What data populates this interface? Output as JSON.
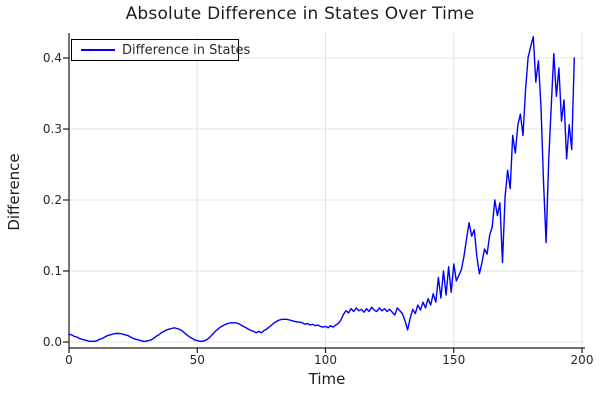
{
  "title": "Absolute Difference in States Over Time",
  "legend": {
    "label": "Difference in States"
  },
  "axes": {
    "x": {
      "label": "Time",
      "tick_labels": [
        "0",
        "50",
        "100",
        "150",
        "200"
      ],
      "tick_values": [
        0,
        50,
        100,
        150,
        200
      ]
    },
    "y": {
      "label": "Difference",
      "tick_labels": [
        "0.0",
        "0.1",
        "0.2",
        "0.3",
        "0.4"
      ],
      "tick_values": [
        0,
        0.1,
        0.2,
        0.3,
        0.4
      ]
    }
  },
  "colors": {
    "line": "#0000ff",
    "grid": "#e5e5e5",
    "axis": "#1a1a1a",
    "background": "#ffffff"
  },
  "chart_data": {
    "type": "line",
    "title": "Absolute Difference in States Over Time",
    "xlabel": "Time",
    "ylabel": "Difference",
    "xlim": [
      0,
      200
    ],
    "ylim": [
      0,
      0.44
    ],
    "grid": true,
    "legend_position": "top-left",
    "series": [
      {
        "name": "Difference in States",
        "color": "#0000ff",
        "x_start": 0,
        "x_step": 1,
        "x": [
          0,
          1,
          2,
          3,
          4,
          5,
          6,
          7,
          8,
          9,
          10,
          11,
          12,
          13,
          14,
          15,
          16,
          17,
          18,
          19,
          20,
          21,
          22,
          23,
          24,
          25,
          26,
          27,
          28,
          29,
          30,
          31,
          32,
          33,
          34,
          35,
          36,
          37,
          38,
          39,
          40,
          41,
          42,
          43,
          44,
          45,
          46,
          47,
          48,
          49,
          50,
          51,
          52,
          53,
          54,
          55,
          56,
          57,
          58,
          59,
          60,
          61,
          62,
          63,
          64,
          65,
          66,
          67,
          68,
          69,
          70,
          71,
          72,
          73,
          74,
          75,
          76,
          77,
          78,
          79,
          80,
          81,
          82,
          83,
          84,
          85,
          86,
          87,
          88,
          89,
          90,
          91,
          92,
          93,
          94,
          95,
          96,
          97,
          98,
          99,
          100,
          101,
          102,
          103,
          104,
          105,
          106,
          107,
          108,
          109,
          110,
          111,
          112,
          113,
          114,
          115,
          116,
          117,
          118,
          119,
          120,
          121,
          122,
          123,
          124,
          125,
          126,
          127,
          128,
          129,
          130,
          131,
          132,
          133,
          134,
          135,
          136,
          137,
          138,
          139,
          140,
          141,
          142,
          143,
          144,
          145,
          146,
          147,
          148,
          149,
          150,
          151,
          152,
          153,
          154,
          155,
          156,
          157,
          158,
          159,
          160,
          161,
          162,
          163,
          164,
          165,
          166,
          167,
          168,
          169,
          170,
          171,
          172,
          173,
          174,
          175,
          176,
          177,
          178,
          179,
          180,
          181,
          182,
          183,
          184,
          185,
          186,
          187,
          188,
          189,
          190,
          191,
          192,
          193,
          194,
          195,
          196,
          197
        ],
        "values": [
          0.011,
          0.01,
          0.008,
          0.007,
          0.005,
          0.004,
          0.003,
          0.002,
          0.001,
          0.001,
          0.001,
          0.002,
          0.004,
          0.005,
          0.007,
          0.009,
          0.01,
          0.011,
          0.012,
          0.012,
          0.012,
          0.011,
          0.01,
          0.009,
          0.007,
          0.005,
          0.004,
          0.003,
          0.002,
          0.001,
          0.001,
          0.002,
          0.003,
          0.005,
          0.008,
          0.01,
          0.013,
          0.015,
          0.017,
          0.018,
          0.019,
          0.02,
          0.019,
          0.018,
          0.016,
          0.013,
          0.01,
          0.007,
          0.005,
          0.003,
          0.002,
          0.001,
          0.001,
          0.002,
          0.004,
          0.007,
          0.011,
          0.015,
          0.018,
          0.021,
          0.023,
          0.025,
          0.026,
          0.027,
          0.027,
          0.027,
          0.026,
          0.024,
          0.022,
          0.02,
          0.018,
          0.016,
          0.015,
          0.013,
          0.015,
          0.013,
          0.016,
          0.018,
          0.021,
          0.024,
          0.027,
          0.029,
          0.031,
          0.032,
          0.032,
          0.032,
          0.031,
          0.03,
          0.029,
          0.028,
          0.028,
          0.027,
          0.025,
          0.026,
          0.024,
          0.025,
          0.023,
          0.024,
          0.022,
          0.021,
          0.022,
          0.02,
          0.023,
          0.021,
          0.024,
          0.026,
          0.031,
          0.039,
          0.044,
          0.041,
          0.047,
          0.043,
          0.048,
          0.044,
          0.046,
          0.042,
          0.047,
          0.043,
          0.049,
          0.045,
          0.043,
          0.048,
          0.044,
          0.047,
          0.043,
          0.046,
          0.042,
          0.038,
          0.048,
          0.044,
          0.04,
          0.03,
          0.017,
          0.033,
          0.046,
          0.04,
          0.052,
          0.045,
          0.056,
          0.048,
          0.061,
          0.052,
          0.068,
          0.056,
          0.091,
          0.062,
          0.1,
          0.066,
          0.106,
          0.07,
          0.11,
          0.086,
          0.094,
          0.102,
          0.121,
          0.146,
          0.168,
          0.149,
          0.158,
          0.121,
          0.096,
          0.112,
          0.131,
          0.124,
          0.151,
          0.162,
          0.2,
          0.178,
          0.196,
          0.112,
          0.205,
          0.242,
          0.216,
          0.291,
          0.266,
          0.306,
          0.321,
          0.291,
          0.356,
          0.401,
          0.416,
          0.43,
          0.366,
          0.396,
          0.331,
          0.226,
          0.14,
          0.256,
          0.331,
          0.406,
          0.346,
          0.386,
          0.311,
          0.341,
          0.258,
          0.306,
          0.271,
          0.4
        ]
      }
    ]
  }
}
